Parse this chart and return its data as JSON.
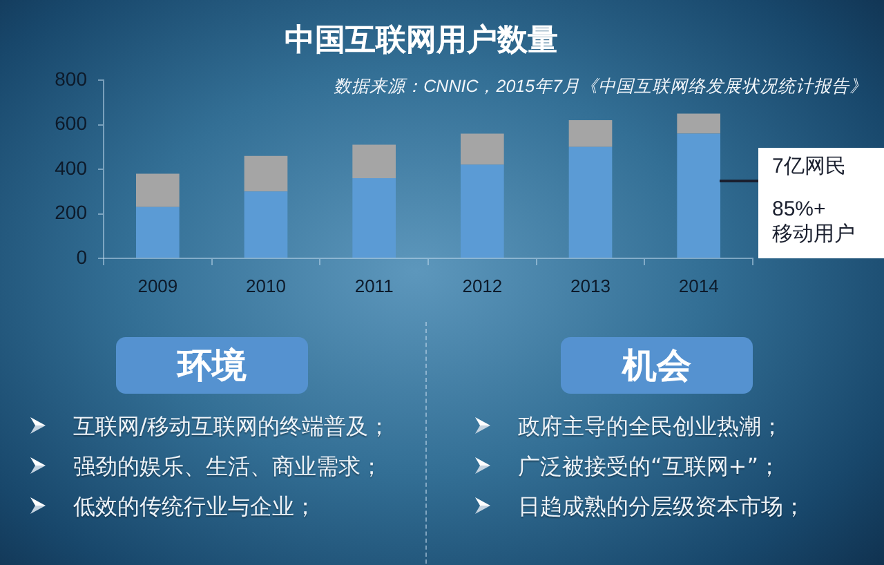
{
  "chart_data": [
    {
      "type": "bar",
      "title": "中国互联网用户数量",
      "categories": [
        "2009",
        "2010",
        "2011",
        "2012",
        "2013",
        "2014"
      ],
      "series": [
        {
          "color": "#5b9bd5",
          "values": [
            230,
            300,
            360,
            420,
            500,
            560
          ]
        },
        {
          "color": "#a5a5a5",
          "values": [
            150,
            160,
            150,
            140,
            120,
            90
          ]
        }
      ],
      "stacked": true,
      "ylim": [
        0,
        800
      ],
      "yticks": [
        0,
        200,
        400,
        600,
        800
      ],
      "annotations": [
        "数据来源：CNNIC，2015年7月《中国互联网络发展状况统计报告》",
        "7亿网民",
        "85%+",
        "移动用户"
      ]
    },
    {
      "type": "other",
      "title": "环境",
      "annotations": [
        "互联网/移动互联网的终端普及；",
        "强劲的娱乐、生活、商业需求；",
        "低效的传统行业与企业；"
      ]
    },
    {
      "type": "other",
      "title": "机会",
      "annotations": [
        "政府主导的全民创业热潮；",
        "广泛被接受的“互联网+”；",
        "日趋成熟的分层级资本市场；"
      ]
    }
  ]
}
